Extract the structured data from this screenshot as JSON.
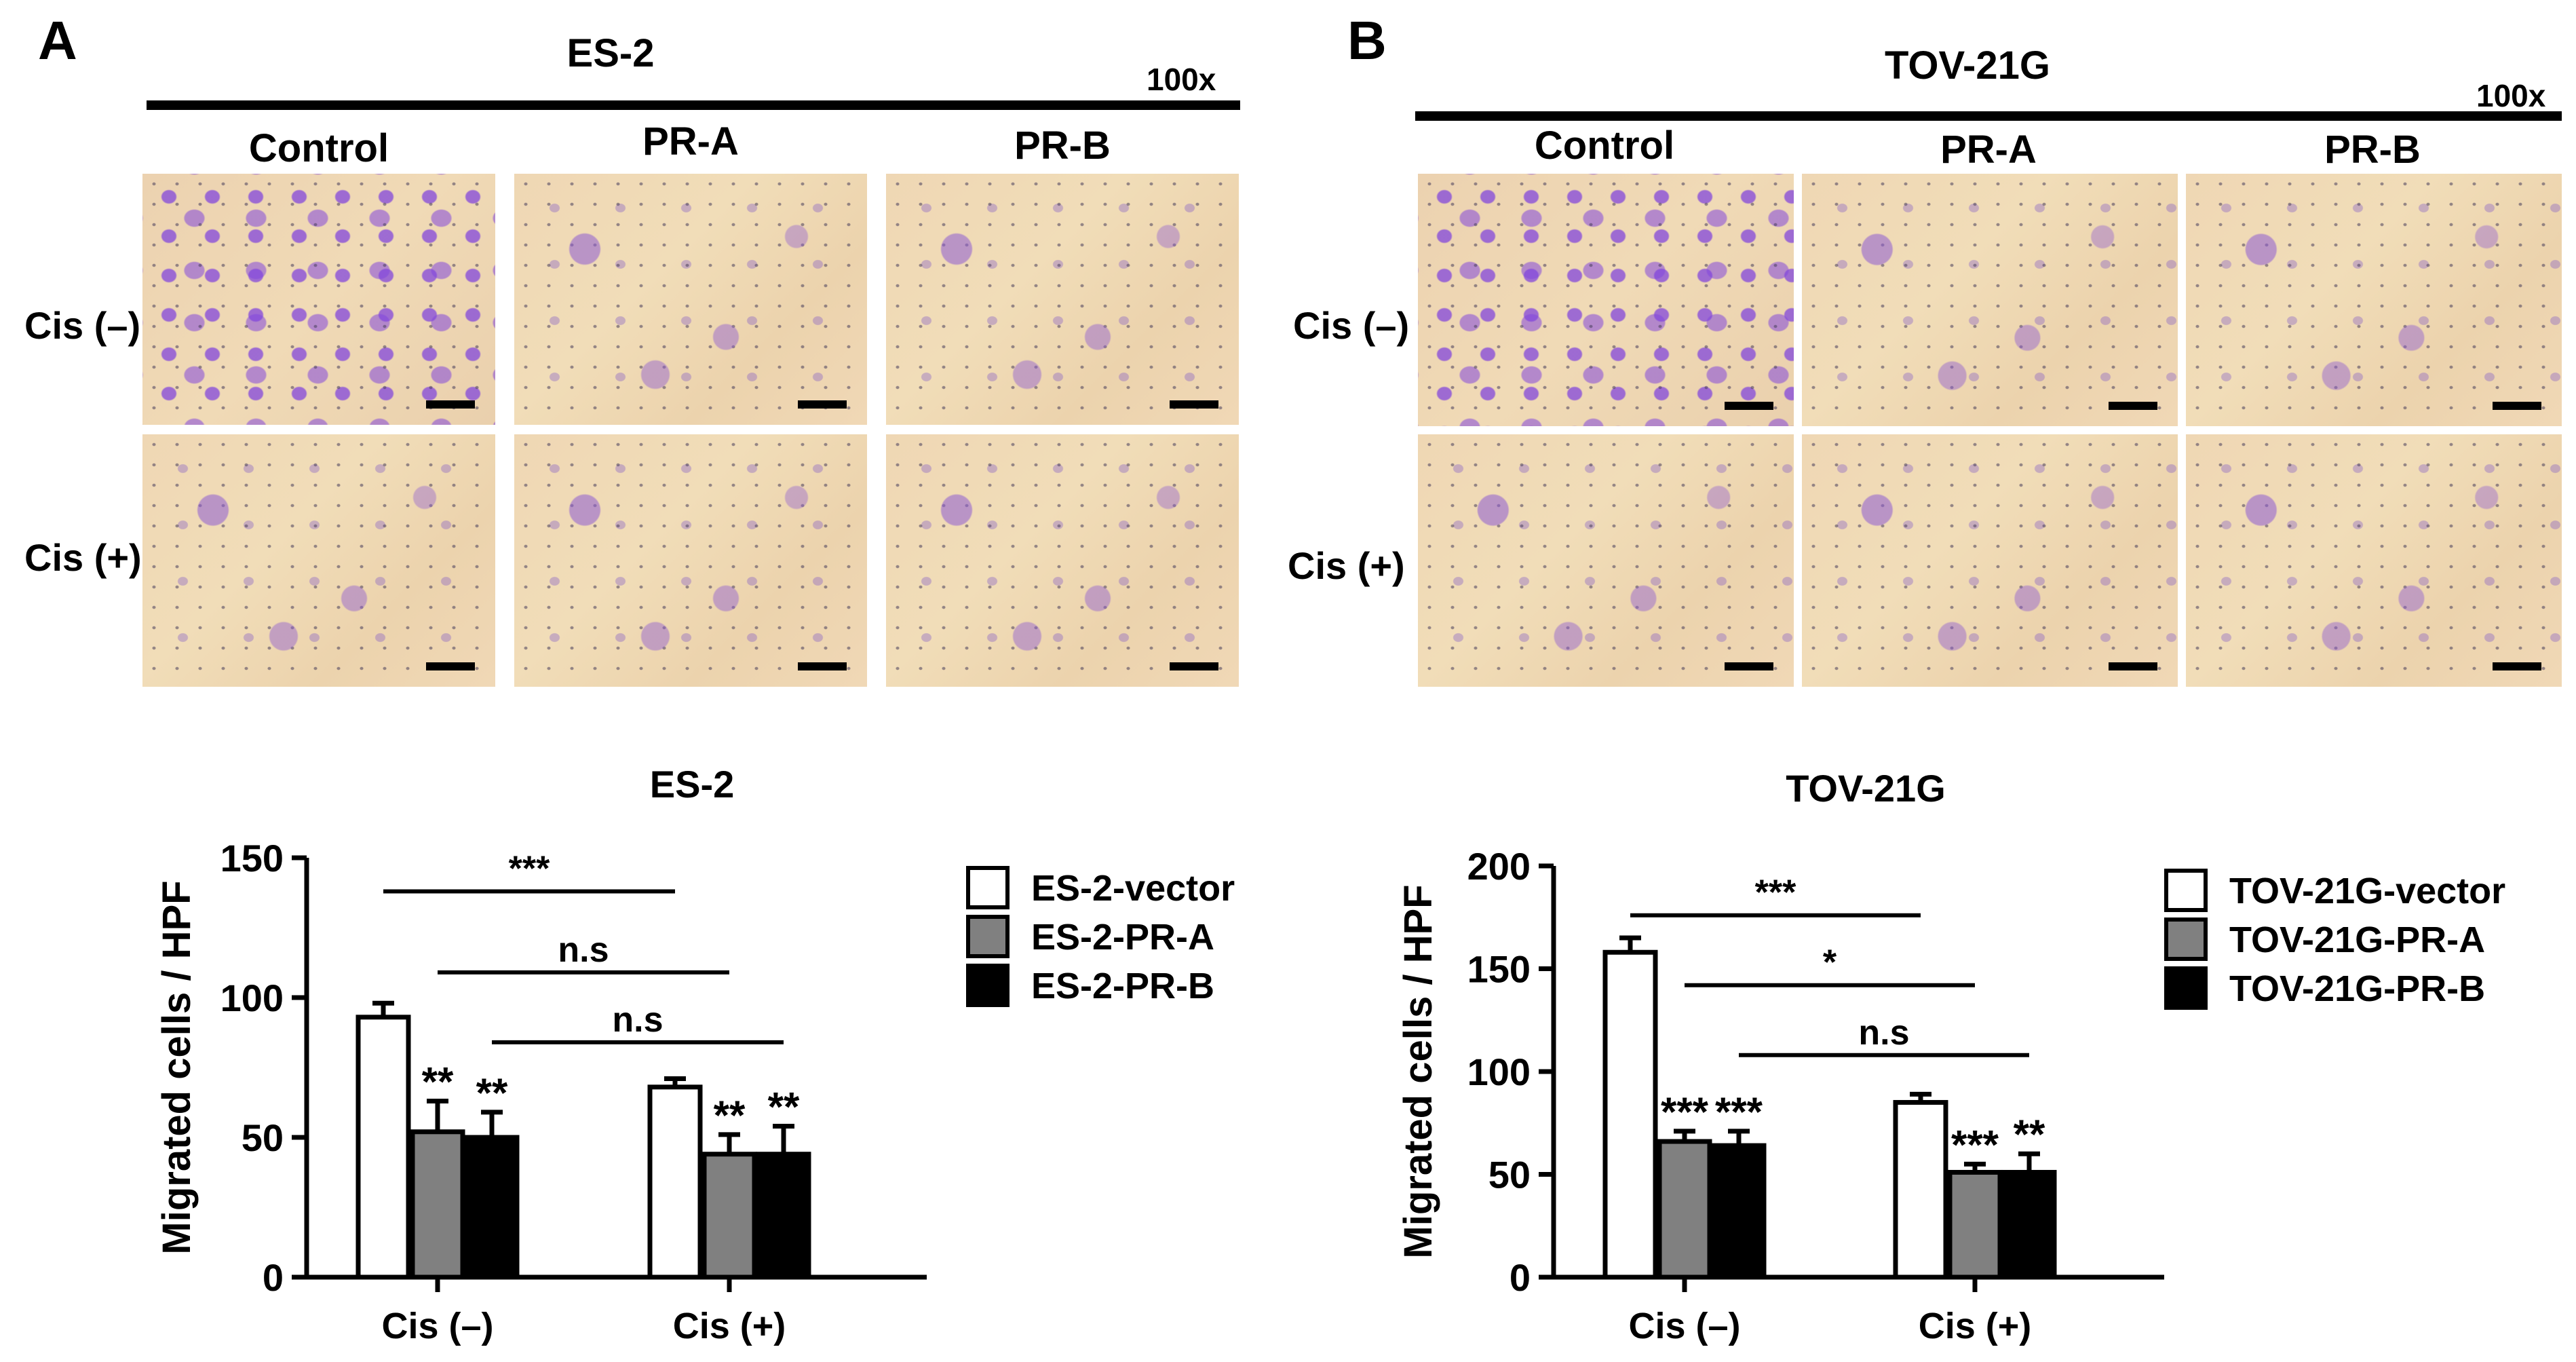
{
  "panels": [
    {
      "letter": "A",
      "header_title": "ES-2",
      "magnification": "100x",
      "columns": [
        "Control",
        "PR-A",
        "PR-B"
      ],
      "rows": [
        "Cis (–)",
        "Cis (+)"
      ]
    },
    {
      "letter": "B",
      "header_title": "TOV-21G",
      "magnification": "100x",
      "columns": [
        "Control",
        "PR-A",
        "PR-B"
      ],
      "rows": [
        "Cis (–)",
        "Cis (+)"
      ]
    }
  ],
  "colors": {
    "vector": "#ffffff",
    "pr_a": "#808080",
    "pr_b": "#000000",
    "axis": "#000000"
  },
  "chart_data": [
    {
      "type": "bar",
      "title": "ES-2",
      "xlabel": "",
      "ylabel": "Migrated cells / HPF",
      "ylim": [
        0,
        150
      ],
      "yticks": [
        0,
        50,
        100,
        150
      ],
      "categories": [
        "Cis (–)",
        "Cis (+)"
      ],
      "series": [
        {
          "name": "ES-2-vector",
          "values": [
            93,
            68
          ],
          "errors": [
            5,
            3
          ],
          "stars": [
            "",
            ""
          ]
        },
        {
          "name": "ES-2-PR-A",
          "values": [
            52,
            44
          ],
          "errors": [
            11,
            7
          ],
          "stars": [
            "**",
            "**"
          ]
        },
        {
          "name": "ES-2-PR-B",
          "values": [
            50,
            44
          ],
          "errors": [
            9,
            10
          ],
          "stars": [
            "**",
            "**"
          ]
        }
      ],
      "comparisons": [
        {
          "label": "***",
          "from": [
            0,
            0
          ],
          "to": [
            1,
            0
          ],
          "y": 138
        },
        {
          "label": "n.s",
          "from": [
            0,
            1
          ],
          "to": [
            1,
            1
          ],
          "y": 109
        },
        {
          "label": "n.s",
          "from": [
            0,
            2
          ],
          "to": [
            1,
            2
          ],
          "y": 84
        }
      ],
      "legend_position": "right"
    },
    {
      "type": "bar",
      "title": "TOV-21G",
      "xlabel": "",
      "ylabel": "Migrated  cells / HPF",
      "ylim": [
        0,
        200
      ],
      "yticks": [
        0,
        50,
        100,
        150,
        200
      ],
      "categories": [
        "Cis (–)",
        "Cis (+)"
      ],
      "series": [
        {
          "name": "TOV-21G-vector",
          "values": [
            158,
            85
          ],
          "errors": [
            7,
            4
          ],
          "stars": [
            "",
            ""
          ]
        },
        {
          "name": "TOV-21G-PR-A",
          "values": [
            66,
            51
          ],
          "errors": [
            5,
            4
          ],
          "stars": [
            "***",
            "***"
          ]
        },
        {
          "name": "TOV-21G-PR-B",
          "values": [
            64,
            51
          ],
          "errors": [
            7,
            9
          ],
          "stars": [
            "***",
            "**"
          ]
        }
      ],
      "comparisons": [
        {
          "label": "***",
          "from": [
            0,
            0
          ],
          "to": [
            1,
            0
          ],
          "y": 176
        },
        {
          "label": "*",
          "from": [
            0,
            1
          ],
          "to": [
            1,
            1
          ],
          "y": 142
        },
        {
          "label": "n.s",
          "from": [
            0,
            2
          ],
          "to": [
            1,
            2
          ],
          "y": 108
        }
      ],
      "legend_position": "right"
    }
  ]
}
